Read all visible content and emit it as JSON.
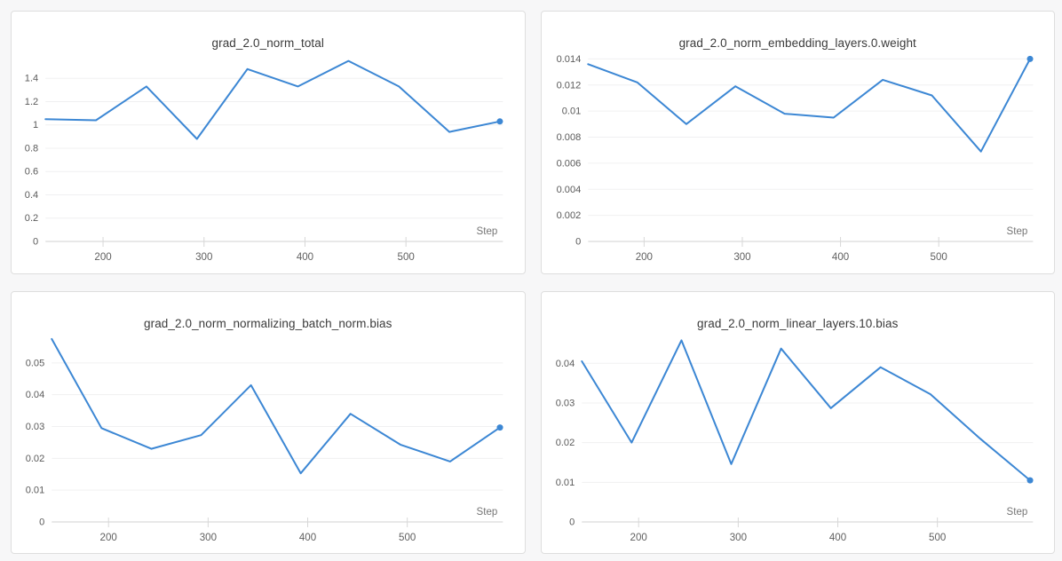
{
  "app": {
    "description": "metrics dashboard with four gradient-norm line charts"
  },
  "colors": {
    "page_bg": "#f7f7f8",
    "panel_bg": "#ffffff",
    "panel_border": "#dedede",
    "title_text": "#3a3a3a",
    "y_tick_label": "#5a5a5a",
    "x_tick_label": "#616161",
    "axis_label": "#757575",
    "gridline": "#f0f0f1",
    "zero_line": "#e1e1e1",
    "tick_mark": "#d8d8d8",
    "series_line": "#3c87d4"
  },
  "chart_data": [
    {
      "type": "line",
      "title": "grad_2.0_norm_total",
      "xlabel": "Step",
      "ylabel": "",
      "x": [
        143,
        193,
        243,
        293,
        343,
        393,
        443,
        493,
        543,
        593
      ],
      "values": [
        1.05,
        1.04,
        1.33,
        0.88,
        1.48,
        1.33,
        1.55,
        1.33,
        0.94,
        1.03
      ],
      "xticks": [
        200,
        300,
        400,
        500
      ],
      "xtick_labels": [
        "200",
        "300",
        "400",
        "500"
      ],
      "yticks": [
        0,
        0.2,
        0.4,
        0.6,
        0.8,
        1,
        1.2,
        1.4
      ],
      "ytick_labels": [
        "0",
        "0.2",
        "0.4",
        "0.6",
        "0.8",
        "1",
        "1.2",
        "1.4"
      ],
      "xlim": [
        143,
        596
      ],
      "ylim": [
        0,
        1.6
      ],
      "grid": true,
      "legend_position": "none",
      "end_marker": true
    },
    {
      "type": "line",
      "title": "grad_2.0_norm_embedding_layers.0.weight",
      "xlabel": "Step",
      "ylabel": "",
      "x": [
        143,
        193,
        243,
        293,
        343,
        393,
        443,
        493,
        543,
        593
      ],
      "values": [
        0.0136,
        0.0122,
        0.009,
        0.0119,
        0.0098,
        0.0095,
        0.0124,
        0.0112,
        0.0069,
        0.014
      ],
      "xticks": [
        200,
        300,
        400,
        500
      ],
      "xtick_labels": [
        "200",
        "300",
        "400",
        "500"
      ],
      "yticks": [
        0,
        0.002,
        0.004,
        0.006,
        0.008,
        0.01,
        0.012,
        0.014
      ],
      "ytick_labels": [
        "0",
        "0.002",
        "0.004",
        "0.006",
        "0.008",
        "0.01",
        "0.012",
        "0.014"
      ],
      "xlim": [
        143,
        596
      ],
      "ylim": [
        0,
        0.0143
      ],
      "grid": true,
      "legend_position": "none",
      "end_marker": true
    },
    {
      "type": "line",
      "title": "grad_2.0_norm_normalizing_batch_norm.bias",
      "xlabel": "Step",
      "ylabel": "",
      "x": [
        143,
        193,
        243,
        293,
        343,
        393,
        443,
        493,
        543,
        593
      ],
      "values": [
        0.0575,
        0.0295,
        0.023,
        0.0273,
        0.043,
        0.0153,
        0.034,
        0.0243,
        0.019,
        0.0297
      ],
      "xticks": [
        200,
        300,
        400,
        500
      ],
      "xtick_labels": [
        "200",
        "300",
        "400",
        "500"
      ],
      "yticks": [
        0,
        0.01,
        0.02,
        0.03,
        0.04,
        0.05
      ],
      "ytick_labels": [
        "0",
        "0.01",
        "0.02",
        "0.03",
        "0.04",
        "0.05"
      ],
      "xlim": [
        143,
        596
      ],
      "ylim": [
        0,
        0.0586
      ],
      "grid": true,
      "legend_position": "none",
      "end_marker": true
    },
    {
      "type": "line",
      "title": "grad_2.0_norm_linear_layers.10.bias",
      "xlabel": "Step",
      "ylabel": "",
      "x": [
        143,
        193,
        243,
        293,
        343,
        393,
        443,
        493,
        543,
        593
      ],
      "values": [
        0.0405,
        0.02,
        0.0458,
        0.0146,
        0.0437,
        0.0287,
        0.039,
        0.0322,
        0.021,
        0.0105
      ],
      "xticks": [
        200,
        300,
        400,
        500
      ],
      "xtick_labels": [
        "200",
        "300",
        "400",
        "500"
      ],
      "yticks": [
        0,
        0.01,
        0.02,
        0.03,
        0.04
      ],
      "ytick_labels": [
        "0",
        "0.01",
        "0.02",
        "0.03",
        "0.04"
      ],
      "xlim": [
        143,
        596
      ],
      "ylim": [
        0,
        0.047
      ],
      "grid": true,
      "legend_position": "none",
      "end_marker": true
    }
  ]
}
